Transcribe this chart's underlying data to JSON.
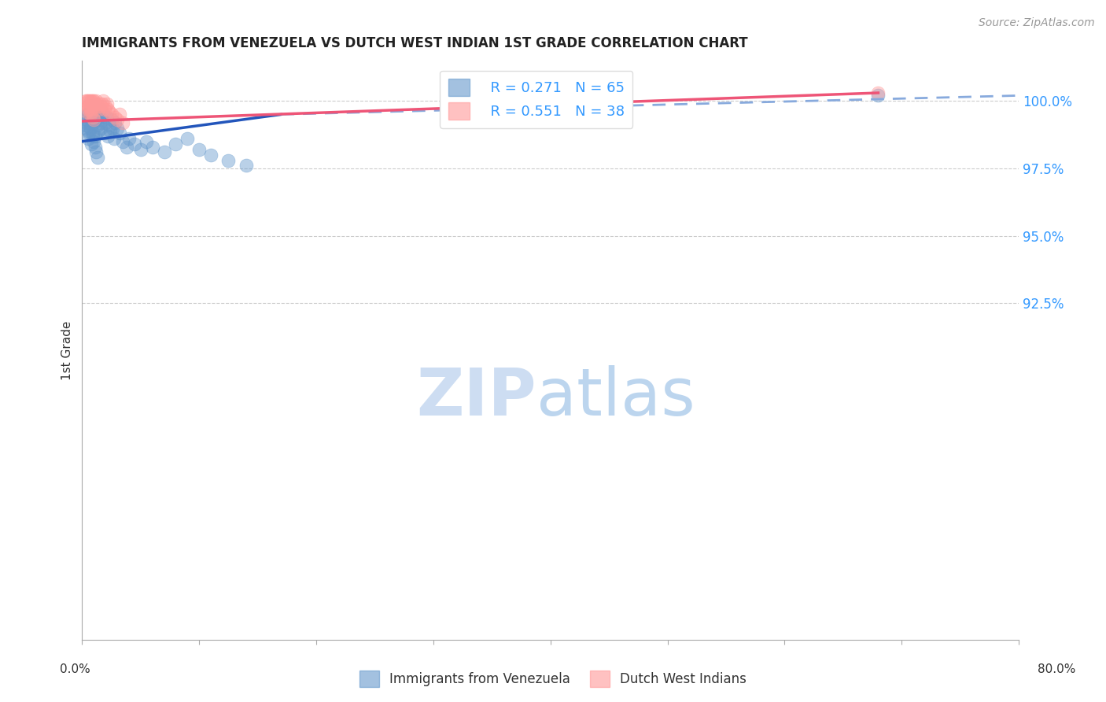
{
  "title": "IMMIGRANTS FROM VENEZUELA VS DUTCH WEST INDIAN 1ST GRADE CORRELATION CHART",
  "source": "Source: ZipAtlas.com",
  "ylabel": "1st Grade",
  "yticks": [
    92.5,
    95.0,
    97.5,
    100.0
  ],
  "ytick_labels": [
    "92.5%",
    "95.0%",
    "97.5%",
    "100.0%"
  ],
  "xlim": [
    0.0,
    80.0
  ],
  "ylim": [
    80.0,
    101.5
  ],
  "blue_color": "#6699CC",
  "pink_color": "#FF9999",
  "trendline_blue_color": "#2255BB",
  "trendline_pink_color": "#EE5577",
  "trendline_blue_dashed_color": "#88AADD",
  "watermark_zip": "ZIP",
  "watermark_atlas": "atlas",
  "blue_scatter_x": [
    0.3,
    0.4,
    0.5,
    0.5,
    0.6,
    0.6,
    0.7,
    0.7,
    0.8,
    0.8,
    0.9,
    0.9,
    1.0,
    1.0,
    1.1,
    1.1,
    1.2,
    1.2,
    1.3,
    1.3,
    1.4,
    1.4,
    1.5,
    1.5,
    1.6,
    1.7,
    1.8,
    1.9,
    2.0,
    2.1,
    2.2,
    2.3,
    2.4,
    2.5,
    2.6,
    2.7,
    2.8,
    3.0,
    3.2,
    3.5,
    3.8,
    4.0,
    4.5,
    5.0,
    5.5,
    6.0,
    7.0,
    8.0,
    9.0,
    10.0,
    11.0,
    12.5,
    14.0,
    0.3,
    0.4,
    0.5,
    0.6,
    0.7,
    0.8,
    0.9,
    1.0,
    1.1,
    1.2,
    1.3,
    68.0
  ],
  "blue_scatter_y": [
    99.1,
    99.3,
    99.5,
    98.9,
    99.6,
    99.2,
    99.4,
    99.7,
    99.3,
    99.8,
    98.8,
    99.5,
    99.6,
    99.2,
    99.4,
    98.7,
    99.3,
    99.6,
    99.5,
    99.1,
    98.9,
    99.4,
    99.2,
    99.7,
    99.0,
    99.3,
    99.5,
    98.8,
    99.2,
    99.4,
    98.7,
    99.1,
    98.9,
    99.3,
    99.0,
    98.6,
    99.2,
    99.0,
    98.8,
    98.5,
    98.3,
    98.6,
    98.4,
    98.2,
    98.5,
    98.3,
    98.1,
    98.4,
    98.6,
    98.2,
    98.0,
    97.8,
    97.6,
    99.0,
    99.2,
    98.6,
    98.8,
    99.0,
    98.4,
    98.7,
    98.5,
    98.3,
    98.1,
    97.9,
    100.2
  ],
  "pink_scatter_x": [
    0.3,
    0.4,
    0.5,
    0.5,
    0.6,
    0.7,
    0.7,
    0.8,
    0.9,
    0.9,
    1.0,
    1.0,
    1.1,
    1.2,
    1.3,
    1.4,
    1.5,
    1.6,
    1.7,
    1.8,
    1.9,
    2.0,
    2.1,
    2.2,
    2.3,
    2.5,
    2.8,
    3.0,
    3.2,
    3.5,
    0.4,
    0.5,
    0.6,
    0.7,
    0.8,
    0.9,
    1.0,
    68.0
  ],
  "pink_scatter_y": [
    100.0,
    100.0,
    100.0,
    99.8,
    100.0,
    100.0,
    99.7,
    100.0,
    100.0,
    99.9,
    100.0,
    99.8,
    99.9,
    100.0,
    99.8,
    99.7,
    99.9,
    99.8,
    99.9,
    100.0,
    99.7,
    99.8,
    99.9,
    99.7,
    99.6,
    99.5,
    99.4,
    99.3,
    99.5,
    99.2,
    99.6,
    99.7,
    99.8,
    99.5,
    99.6,
    99.4,
    99.3,
    100.3
  ],
  "trendline_blue_x0": 0.0,
  "trendline_blue_y0": 98.5,
  "trendline_blue_x1": 17.0,
  "trendline_blue_y1": 99.5,
  "trendline_blue_dash_x0": 17.0,
  "trendline_blue_dash_y0": 99.5,
  "trendline_blue_dash_x1": 80.0,
  "trendline_blue_dash_y1": 100.2,
  "trendline_pink_x0": 0.0,
  "trendline_pink_y0": 99.25,
  "trendline_pink_x1": 68.0,
  "trendline_pink_y1": 100.3,
  "legend1_label": "  R = 0.271   N = 65",
  "legend2_label": "  R = 0.551   N = 38",
  "bottom_legend1": "Immigrants from Venezuela",
  "bottom_legend2": "Dutch West Indians"
}
